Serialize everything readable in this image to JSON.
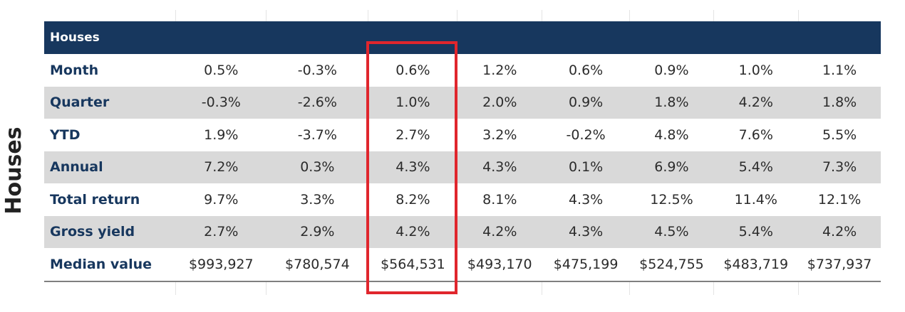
{
  "side_label": "Houses",
  "table": {
    "header": "Houses",
    "rows": [
      {
        "label": "Month",
        "values": [
          "0.5%",
          "-0.3%",
          "0.6%",
          "1.2%",
          "0.6%",
          "0.9%",
          "1.0%",
          "1.1%"
        ]
      },
      {
        "label": "Quarter",
        "values": [
          "-0.3%",
          "-2.6%",
          "1.0%",
          "2.0%",
          "0.9%",
          "1.8%",
          "4.2%",
          "1.8%"
        ]
      },
      {
        "label": "YTD",
        "values": [
          "1.9%",
          "-3.7%",
          "2.7%",
          "3.2%",
          "-0.2%",
          "4.8%",
          "7.6%",
          "5.5%"
        ]
      },
      {
        "label": "Annual",
        "values": [
          "7.2%",
          "0.3%",
          "4.3%",
          "4.3%",
          "0.1%",
          "6.9%",
          "5.4%",
          "7.3%"
        ]
      },
      {
        "label": "Total return",
        "values": [
          "9.7%",
          "3.3%",
          "8.2%",
          "8.1%",
          "4.3%",
          "12.5%",
          "11.4%",
          "12.1%"
        ]
      },
      {
        "label": "Gross yield",
        "values": [
          "2.7%",
          "2.9%",
          "4.2%",
          "4.2%",
          "4.3%",
          "4.5%",
          "5.4%",
          "4.2%"
        ]
      },
      {
        "label": "Median value",
        "values": [
          "$993,927",
          "$780,574",
          "$564,531",
          "$493,170",
          "$475,199",
          "$524,755",
          "$483,719",
          "$737,937"
        ]
      }
    ]
  },
  "highlight": {
    "color": "#e0262d",
    "column_index": 2
  },
  "colors": {
    "header_bg": "#17375e",
    "shaded_row": "#d9d9d9"
  }
}
